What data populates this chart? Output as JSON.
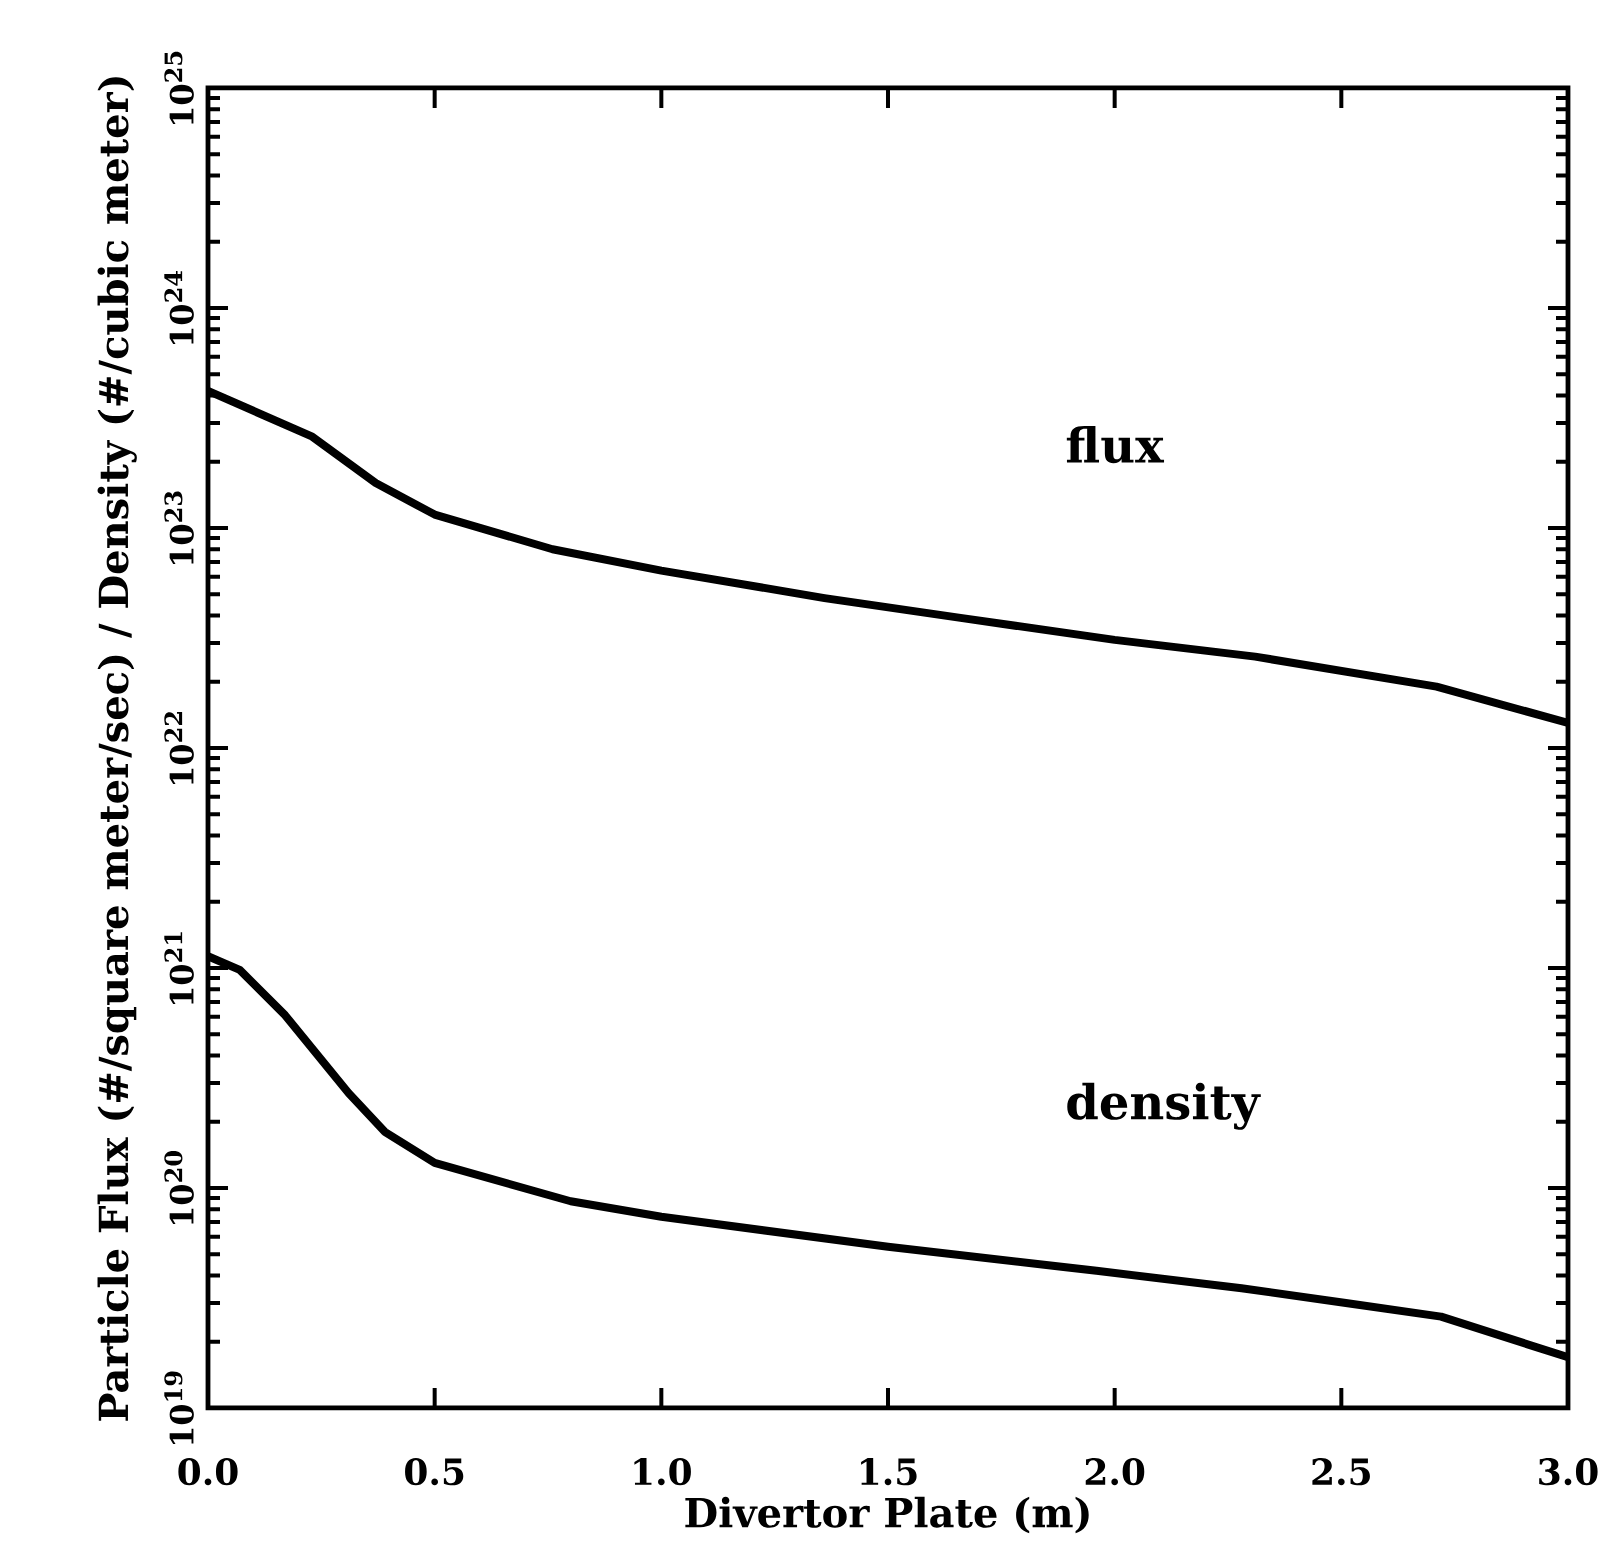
{
  "chart_data": {
    "type": "line",
    "xlabel": "Divertor Plate (m)",
    "ylabel": "Particle Flux (#/square meter/sec) / Density (#/cubic meter)",
    "log": "y",
    "grid": false,
    "xlim": [
      0,
      3
    ],
    "ylim": [
      1e+19,
      1e+25
    ],
    "xticks": [
      {
        "value": 0,
        "label": "0.0"
      },
      {
        "value": 0.5,
        "label": "0.5"
      },
      {
        "value": 1,
        "label": "1.0"
      },
      {
        "value": 1.5,
        "label": "1.5"
      },
      {
        "value": 2,
        "label": "2.0"
      },
      {
        "value": 2.5,
        "label": "2.5"
      },
      {
        "value": 3,
        "label": "3.0"
      }
    ],
    "yticks": [
      {
        "value": 1e+19,
        "label": "10$^{19}$"
      },
      {
        "value": 1e+20,
        "label": "10$^{20}$"
      },
      {
        "value": 1e+21,
        "label": "10$^{21}$"
      },
      {
        "value": 1e+22,
        "label": "10$^{22}$"
      },
      {
        "value": 1e+23,
        "label": "10$^{23}$"
      },
      {
        "value": 1e+24,
        "label": "10$^{24}$"
      },
      {
        "value": 1e+25,
        "label": "10$^{25}$"
      }
    ],
    "series": [
      {
        "color": "#000000",
        "x": [
          0,
          0.23,
          0.37,
          0.5,
          0.76,
          1.0,
          1.36,
          1.66,
          2.0,
          2.31,
          2.71,
          3.0
        ],
        "values": [
          4.2e+23,
          2.6e+23,
          1.6e+23,
          1.15e+23,
          8e+22,
          6.4e+22,
          4.8e+22,
          3.9e+22,
          3.1e+22,
          2.6e+22,
          1.9e+22,
          1.3e+22
        ]
      },
      {
        "color": "#000000",
        "x": [
          0,
          0.07,
          0.17,
          0.31,
          0.39,
          0.5,
          0.8,
          1.0,
          1.5,
          1.96,
          2.28,
          2.51,
          2.72,
          3.0
        ],
        "values": [
          1.13e+21,
          9.8e+20,
          6.1e+20,
          2.7e+20,
          1.8e+20,
          1.3e+20,
          8.7e+19,
          7.4e+19,
          5.4e+19,
          4.2e+19,
          3.5e+19,
          3e+19,
          2.6e+19,
          1.7e+19
        ]
      }
    ],
    "annotations": [
      "flux",
      "density"
    ]
  }
}
